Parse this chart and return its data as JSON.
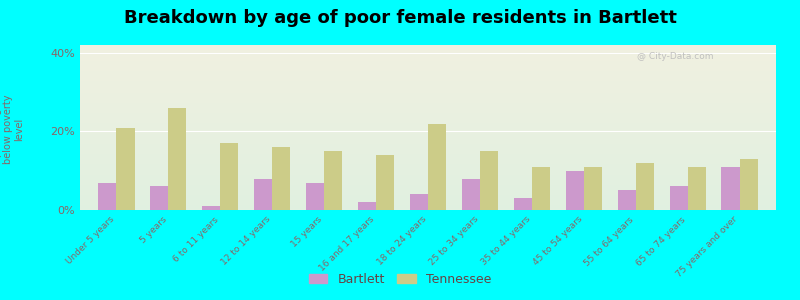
{
  "title": "Breakdown by age of poor female residents in Bartlett",
  "categories": [
    "Under 5 years",
    "5 years",
    "6 to 11 years",
    "12 to 14 years",
    "15 years",
    "16 and 17 years",
    "18 to 24 years",
    "25 to 34 years",
    "35 to 44 years",
    "45 to 54 years",
    "55 to 64 years",
    "65 to 74 years",
    "75 years and over"
  ],
  "bartlett": [
    7,
    6,
    1,
    8,
    7,
    2,
    4,
    8,
    3,
    10,
    5,
    6,
    11
  ],
  "tennessee": [
    21,
    26,
    17,
    16,
    15,
    14,
    22,
    15,
    11,
    11,
    12,
    11,
    13
  ],
  "ylabel": "percentage\nbelow poverty\nlevel",
  "ylim": [
    0,
    42
  ],
  "yticks": [
    0,
    20,
    40
  ],
  "ytick_labels": [
    "0%",
    "20%",
    "40%"
  ],
  "bartlett_color": "#cc99cc",
  "tennessee_color": "#cccc88",
  "background_color": "#00ffff",
  "plot_bg_color_top": "#f0f0e0",
  "plot_bg_color_bottom": "#e0f0e0",
  "bar_width": 0.35,
  "title_fontsize": 13,
  "legend_bartlett": "Bartlett",
  "legend_tennessee": "Tennessee",
  "tick_color": "#886666",
  "watermark": "@ City-Data.com"
}
